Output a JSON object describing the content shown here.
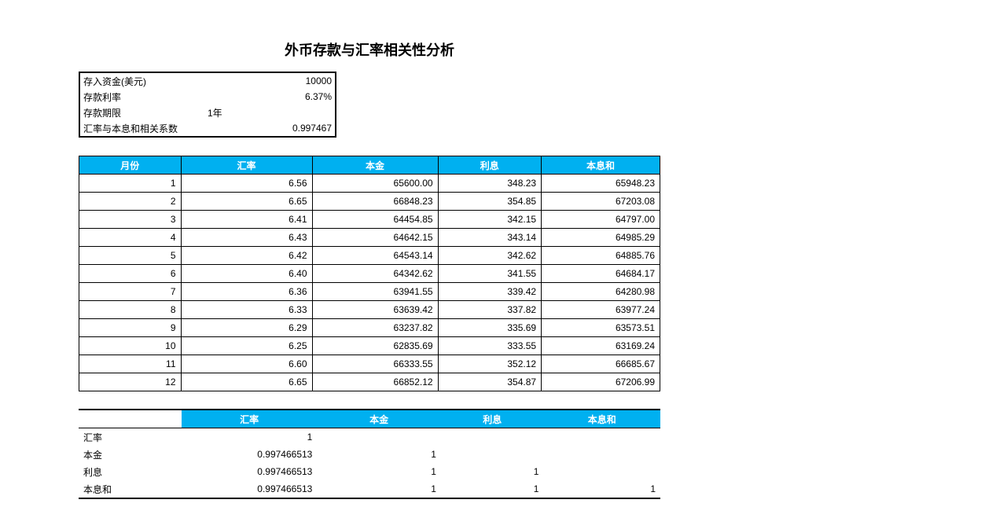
{
  "title": "外币存款与汇率相关性分析",
  "info": {
    "deposit_label": "存入资金(美元)",
    "deposit_value": "10000",
    "rate_label": "存款利率",
    "rate_value": "6.37%",
    "term_label": "存款期限",
    "term_value": "1年",
    "corr_label": "汇率与本息和相关系数",
    "corr_value": "0.997467"
  },
  "columns": {
    "month": "月份",
    "rate": "汇率",
    "principal": "本金",
    "interest": "利息",
    "sum": "本息和"
  },
  "rows": [
    {
      "m": "1",
      "r": "6.56",
      "p": "65600.00",
      "i": "348.23",
      "s": "65948.23"
    },
    {
      "m": "2",
      "r": "6.65",
      "p": "66848.23",
      "i": "354.85",
      "s": "67203.08"
    },
    {
      "m": "3",
      "r": "6.41",
      "p": "64454.85",
      "i": "342.15",
      "s": "64797.00"
    },
    {
      "m": "4",
      "r": "6.43",
      "p": "64642.15",
      "i": "343.14",
      "s": "64985.29"
    },
    {
      "m": "5",
      "r": "6.42",
      "p": "64543.14",
      "i": "342.62",
      "s": "64885.76"
    },
    {
      "m": "6",
      "r": "6.40",
      "p": "64342.62",
      "i": "341.55",
      "s": "64684.17"
    },
    {
      "m": "7",
      "r": "6.36",
      "p": "63941.55",
      "i": "339.42",
      "s": "64280.98"
    },
    {
      "m": "8",
      "r": "6.33",
      "p": "63639.42",
      "i": "337.82",
      "s": "63977.24"
    },
    {
      "m": "9",
      "r": "6.29",
      "p": "63237.82",
      "i": "335.69",
      "s": "63573.51"
    },
    {
      "m": "10",
      "r": "6.25",
      "p": "62835.69",
      "i": "333.55",
      "s": "63169.24"
    },
    {
      "m": "11",
      "r": "6.60",
      "p": "66333.55",
      "i": "352.12",
      "s": "66685.67"
    },
    {
      "m": "12",
      "r": "6.65",
      "p": "66852.12",
      "i": "354.87",
      "s": "67206.99"
    }
  ],
  "corr_headers": {
    "rate": "汇率",
    "principal": "本金",
    "interest": "利息",
    "sum": "本息和"
  },
  "corr_rows": [
    {
      "label": "汇率",
      "v1": "1",
      "v2": "",
      "v3": "",
      "v4": ""
    },
    {
      "label": "本金",
      "v1": "0.997466513",
      "v2": "1",
      "v3": "",
      "v4": ""
    },
    {
      "label": "利息",
      "v1": "0.997466513",
      "v2": "1",
      "v3": "1",
      "v4": ""
    },
    {
      "label": "本息和",
      "v1": "0.997466513",
      "v2": "1",
      "v3": "1",
      "v4": "1"
    }
  ],
  "style": {
    "header_bg": "#00b0f0",
    "header_fg": "#ffffff",
    "border_color": "#000000",
    "background": "#ffffff",
    "title_fontsize": 18,
    "body_fontsize": 12
  }
}
